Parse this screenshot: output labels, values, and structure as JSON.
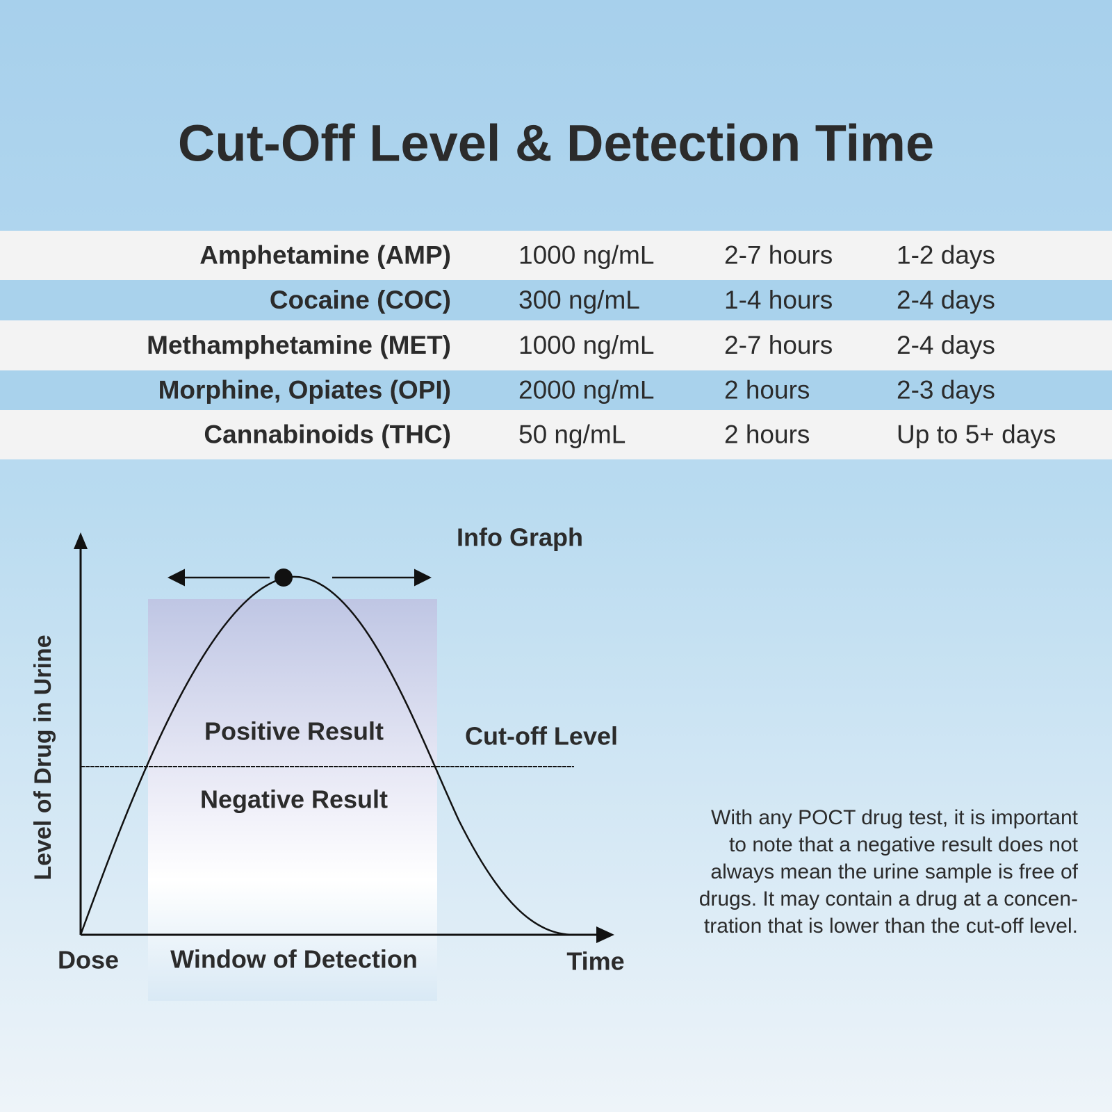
{
  "header": {
    "title": "Cut-Off Level & Detection Time"
  },
  "table": {
    "rows": [
      [
        "Amphetamine (AMP)",
        "1000 ng/mL",
        "2-7 hours",
        "1-2 days"
      ],
      [
        "Cocaine (COC)",
        "300 ng/mL",
        "1-4 hours",
        "2-4 days"
      ],
      [
        "Methamphetamine (MET)",
        "1000 ng/mL",
        "2-7 hours",
        "2-4 days"
      ],
      [
        "Morphine, Opiates (OPI)",
        "2000 ng/mL",
        "2 hours",
        "2-3 days"
      ],
      [
        "Cannabinoids (THC)",
        "50 ng/mL",
        "2 hours",
        "Up to 5+ days"
      ]
    ]
  },
  "diagram": {
    "title": "Info Graph",
    "y_axis_label": "Level of Drug in Urine",
    "positive": "Positive Result",
    "negative": "Negative Result",
    "cutoff": "Cut-off Level",
    "dose": "Dose",
    "window": "Window of Detection",
    "time": "Time"
  },
  "note": {
    "lines": [
      "With any POCT drug test, it is important",
      "to note that a negative result does not",
      "always mean the urine sample is free of",
      "drugs. It may contain a drug at a concen-",
      "tration that is lower than the cut-off level."
    ]
  }
}
